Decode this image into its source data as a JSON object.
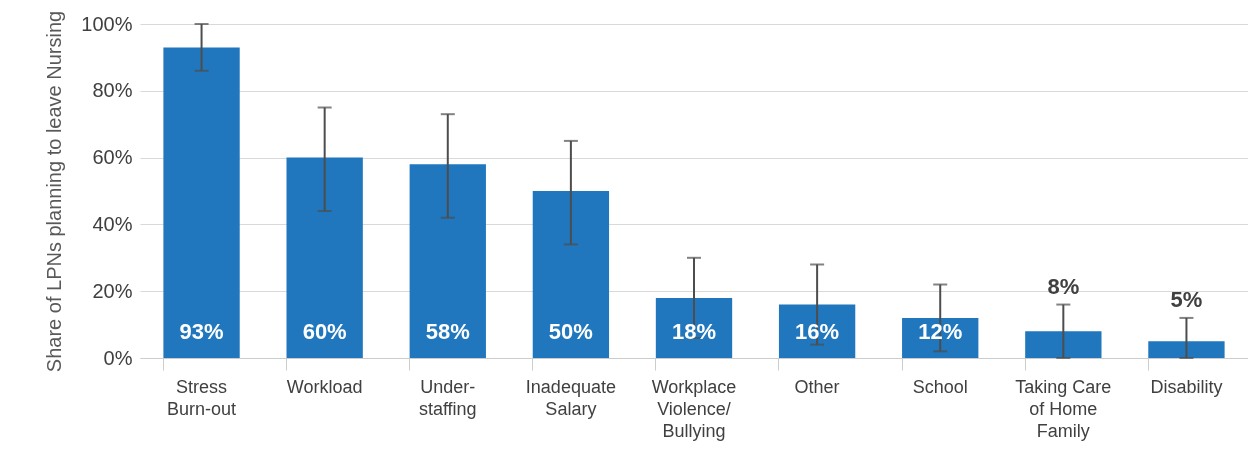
{
  "chart_data": {
    "type": "bar",
    "ylabel": "Share of LPNs planning to leave Nursing",
    "categories": [
      "Stress Burn-out",
      "Workload",
      "Under-staffing",
      "Inadequate Salary",
      "Workplace Violence/Bullying",
      "Other",
      "School",
      "Taking Care of Home Family",
      "Disability"
    ],
    "values": [
      93,
      60,
      58,
      50,
      18,
      16,
      12,
      8,
      5
    ],
    "errors": [
      [
        86,
        100
      ],
      [
        44,
        75
      ],
      [
        42,
        73
      ],
      [
        34,
        65
      ],
      [
        6,
        30
      ],
      [
        4,
        28
      ],
      [
        2,
        22
      ],
      [
        0,
        16
      ],
      [
        0,
        12
      ]
    ],
    "value_labels": [
      "93%",
      "60%",
      "58%",
      "50%",
      "18%",
      "16%",
      "12%",
      "8%",
      "5%"
    ],
    "color": "#2077bd",
    "ylim": [
      0,
      100
    ],
    "yticks": [
      {
        "value": 0,
        "label": "0%"
      },
      {
        "value": 20,
        "label": "20%"
      },
      {
        "value": 40,
        "label": "40%"
      },
      {
        "value": 60,
        "label": "60%"
      },
      {
        "value": 80,
        "label": "80%"
      },
      {
        "value": 100,
        "label": "100%"
      }
    ],
    "grid": "y"
  }
}
